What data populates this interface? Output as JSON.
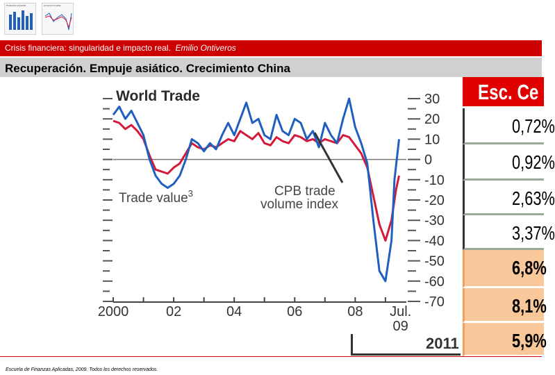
{
  "header": {
    "course": "Crisis financiera: singularidad e impacto real.",
    "author": "Emilio Ontiveros",
    "slide_title": "Recuperación. Empuje asiático. Crecimiento China"
  },
  "thumbnails": [
    {
      "title": "Producción industrial"
    },
    {
      "title": "Comercio mundial"
    }
  ],
  "table": {
    "header": "Esc. Ce",
    "values": [
      "0,72%",
      "0,92%",
      "2,63%",
      "3,37%",
      "6,8%",
      "8,1%",
      "5,9%"
    ],
    "row_year": "2011"
  },
  "colors": {
    "brand_red": "#cc0000",
    "trade_value": "#1f5fbf",
    "cpb_volume": "#d41a3a",
    "highlight": "#f8c79a"
  },
  "chart_data": {
    "type": "line",
    "title": "World Trade",
    "xlabel": "",
    "ylabel": "",
    "ylim": [
      -70,
      30
    ],
    "xlim": [
      2000,
      2009.6
    ],
    "yticks": [
      30,
      20,
      10,
      0,
      -10,
      -20,
      -30,
      -40,
      -50,
      -60,
      -70
    ],
    "ytick_labels": [
      "30",
      "20",
      "10",
      "0",
      "-10",
      "-20",
      "-30",
      "-40",
      "-50",
      "-60",
      "-70"
    ],
    "xticks": [
      {
        "x": 2000,
        "label": "2000"
      },
      {
        "x": 2002,
        "label": "02"
      },
      {
        "x": 2004,
        "label": "04"
      },
      {
        "x": 2006,
        "label": "06"
      },
      {
        "x": 2008,
        "label": "08"
      },
      {
        "x": 2009.5,
        "label": "Jul."
      }
    ],
    "xtick_sublabel": "09",
    "annotations": [
      {
        "text": "Trade value",
        "superscript": "3",
        "series": "Trade value"
      },
      {
        "text": "CPB trade",
        "line2": "volume index",
        "series": "CPB trade volume index"
      }
    ],
    "series": [
      {
        "name": "Trade value",
        "color": "#1f5fbf",
        "points": [
          [
            2000.0,
            22
          ],
          [
            2000.2,
            26
          ],
          [
            2000.4,
            20
          ],
          [
            2000.6,
            24
          ],
          [
            2000.8,
            18
          ],
          [
            2001.0,
            12
          ],
          [
            2001.2,
            0
          ],
          [
            2001.4,
            -8
          ],
          [
            2001.6,
            -12
          ],
          [
            2001.8,
            -14
          ],
          [
            2002.0,
            -12
          ],
          [
            2002.2,
            -8
          ],
          [
            2002.4,
            0
          ],
          [
            2002.6,
            10
          ],
          [
            2002.8,
            8
          ],
          [
            2003.0,
            4
          ],
          [
            2003.2,
            8
          ],
          [
            2003.4,
            5
          ],
          [
            2003.6,
            12
          ],
          [
            2003.8,
            18
          ],
          [
            2004.0,
            12
          ],
          [
            2004.2,
            20
          ],
          [
            2004.4,
            28
          ],
          [
            2004.6,
            18
          ],
          [
            2004.8,
            20
          ],
          [
            2005.0,
            12
          ],
          [
            2005.2,
            10
          ],
          [
            2005.4,
            22
          ],
          [
            2005.6,
            14
          ],
          [
            2005.8,
            12
          ],
          [
            2006.0,
            20
          ],
          [
            2006.2,
            18
          ],
          [
            2006.4,
            10
          ],
          [
            2006.6,
            14
          ],
          [
            2006.8,
            6
          ],
          [
            2007.0,
            18
          ],
          [
            2007.2,
            12
          ],
          [
            2007.4,
            8
          ],
          [
            2007.6,
            20
          ],
          [
            2007.8,
            30
          ],
          [
            2008.0,
            16
          ],
          [
            2008.2,
            8
          ],
          [
            2008.4,
            -2
          ],
          [
            2008.6,
            -30
          ],
          [
            2008.8,
            -55
          ],
          [
            2009.0,
            -60
          ],
          [
            2009.2,
            -40
          ],
          [
            2009.3,
            -10
          ],
          [
            2009.45,
            10
          ]
        ]
      },
      {
        "name": "CPB trade volume index",
        "color": "#d41a3a",
        "points": [
          [
            2000.0,
            19
          ],
          [
            2000.2,
            18
          ],
          [
            2000.4,
            15
          ],
          [
            2000.6,
            17
          ],
          [
            2000.8,
            14
          ],
          [
            2001.0,
            10
          ],
          [
            2001.2,
            2
          ],
          [
            2001.4,
            -5
          ],
          [
            2001.6,
            -6
          ],
          [
            2001.8,
            -7
          ],
          [
            2002.0,
            -4
          ],
          [
            2002.2,
            -2
          ],
          [
            2002.4,
            3
          ],
          [
            2002.6,
            8
          ],
          [
            2002.8,
            6
          ],
          [
            2003.0,
            5
          ],
          [
            2003.2,
            7
          ],
          [
            2003.4,
            6
          ],
          [
            2003.6,
            8
          ],
          [
            2003.8,
            10
          ],
          [
            2004.0,
            9
          ],
          [
            2004.2,
            14
          ],
          [
            2004.4,
            12
          ],
          [
            2004.6,
            10
          ],
          [
            2004.8,
            13
          ],
          [
            2005.0,
            8
          ],
          [
            2005.2,
            7
          ],
          [
            2005.4,
            11
          ],
          [
            2005.6,
            9
          ],
          [
            2005.8,
            8
          ],
          [
            2006.0,
            12
          ],
          [
            2006.2,
            11
          ],
          [
            2006.4,
            9
          ],
          [
            2006.6,
            10
          ],
          [
            2006.8,
            8
          ],
          [
            2007.0,
            10
          ],
          [
            2007.2,
            9
          ],
          [
            2007.4,
            8
          ],
          [
            2007.6,
            12
          ],
          [
            2007.8,
            11
          ],
          [
            2008.0,
            7
          ],
          [
            2008.2,
            3
          ],
          [
            2008.4,
            -4
          ],
          [
            2008.6,
            -18
          ],
          [
            2008.8,
            -32
          ],
          [
            2009.0,
            -40
          ],
          [
            2009.2,
            -30
          ],
          [
            2009.35,
            -15
          ],
          [
            2009.45,
            -8
          ]
        ]
      }
    ]
  },
  "footer": {
    "text": "Escuela de Finanzas Aplicadas, 2009. Todos los derechos reservados."
  }
}
